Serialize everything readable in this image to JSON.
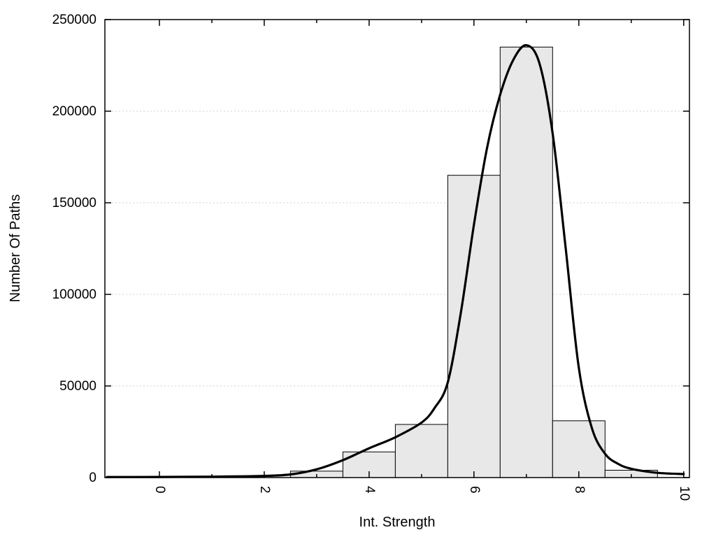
{
  "chart_data": {
    "type": "bar",
    "subtype": "histogram-with-density-curve",
    "title": "",
    "xlabel": "Int. Strength",
    "ylabel": "Number Of Paths",
    "xlim": [
      -1.04,
      10.11
    ],
    "ylim": [
      0,
      250000
    ],
    "x_major_ticks": [
      0,
      2,
      4,
      6,
      8,
      10
    ],
    "x_major_tick_labels": [
      "0",
      "2",
      "4",
      "6",
      "8",
      "10"
    ],
    "x_minor_ticks": [
      1,
      3,
      5,
      7,
      9
    ],
    "x_tick_label_rotation": 90,
    "y_ticks": [
      0,
      50000,
      100000,
      150000,
      200000,
      250000
    ],
    "y_tick_labels": [
      "0",
      "50000",
      "100000",
      "150000",
      "200000",
      "250000"
    ],
    "grid": "horizontal-dotted",
    "legend": "none",
    "bars": {
      "bin_width": 1,
      "fill": "#e8e8e8",
      "stroke": "#000000",
      "bins": [
        {
          "x0": 2.5,
          "x1": 3.5,
          "count": 3500
        },
        {
          "x0": 3.5,
          "x1": 4.5,
          "count": 14000
        },
        {
          "x0": 4.5,
          "x1": 5.5,
          "count": 29000
        },
        {
          "x0": 5.5,
          "x1": 6.5,
          "count": 165000
        },
        {
          "x0": 6.5,
          "x1": 7.5,
          "count": 235000
        },
        {
          "x0": 7.5,
          "x1": 8.5,
          "count": 31000
        },
        {
          "x0": 8.5,
          "x1": 9.5,
          "count": 4000
        }
      ]
    },
    "curve": {
      "name": "density-fit",
      "color": "#000000",
      "width": 3.2,
      "points": [
        {
          "x": -1.0,
          "y": 300
        },
        {
          "x": 0.0,
          "y": 350
        },
        {
          "x": 1.0,
          "y": 500
        },
        {
          "x": 2.0,
          "y": 900
        },
        {
          "x": 2.5,
          "y": 1700
        },
        {
          "x": 3.0,
          "y": 4500
        },
        {
          "x": 3.5,
          "y": 9500
        },
        {
          "x": 4.0,
          "y": 16000
        },
        {
          "x": 4.5,
          "y": 22000
        },
        {
          "x": 5.0,
          "y": 30000
        },
        {
          "x": 5.25,
          "y": 38000
        },
        {
          "x": 5.5,
          "y": 52000
        },
        {
          "x": 5.75,
          "y": 90000
        },
        {
          "x": 6.0,
          "y": 138000
        },
        {
          "x": 6.25,
          "y": 180000
        },
        {
          "x": 6.5,
          "y": 209000
        },
        {
          "x": 6.75,
          "y": 228000
        },
        {
          "x": 7.0,
          "y": 236000
        },
        {
          "x": 7.25,
          "y": 226000
        },
        {
          "x": 7.5,
          "y": 188000
        },
        {
          "x": 7.75,
          "y": 125000
        },
        {
          "x": 8.0,
          "y": 60000
        },
        {
          "x": 8.25,
          "y": 27000
        },
        {
          "x": 8.5,
          "y": 13000
        },
        {
          "x": 8.75,
          "y": 7500
        },
        {
          "x": 9.0,
          "y": 4800
        },
        {
          "x": 9.5,
          "y": 2600
        },
        {
          "x": 10.0,
          "y": 1900
        }
      ]
    },
    "frame_color": "#000000",
    "grid_color": "#d0d0d0",
    "background": "#ffffff"
  }
}
